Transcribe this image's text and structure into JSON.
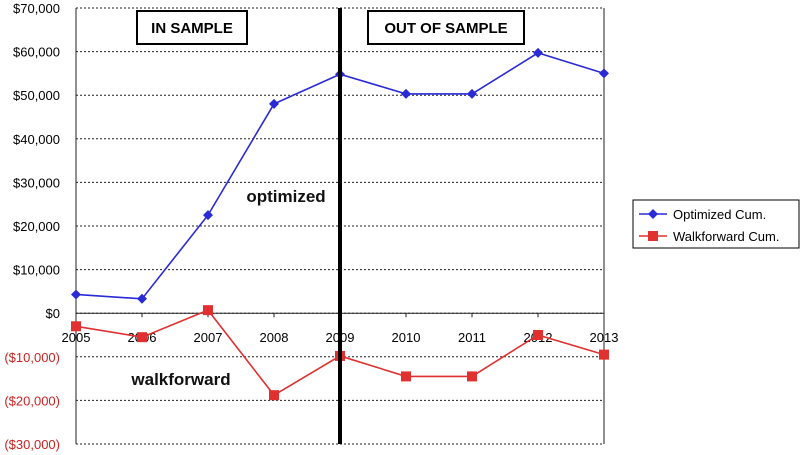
{
  "chart_data": {
    "type": "line",
    "x": [
      "2005",
      "2006",
      "2007",
      "2008",
      "2009",
      "2010",
      "2011",
      "2012",
      "2013"
    ],
    "series": [
      {
        "name": "Optimized Cum.",
        "color": "#2a2ad6",
        "marker": "diamond",
        "values": [
          4300,
          3300,
          22500,
          48000,
          54800,
          50300,
          50300,
          59700,
          55000
        ]
      },
      {
        "name": "Walkforward Cum.",
        "color": "#e03030",
        "marker": "square",
        "values": [
          -3000,
          -5500,
          700,
          -18800,
          -9800,
          -14500,
          -14500,
          -5000,
          -9500
        ]
      }
    ],
    "ylim": [
      -30000,
      70000
    ],
    "yticks": [
      {
        "value": 70000,
        "label": "$70,000"
      },
      {
        "value": 60000,
        "label": "$60,000"
      },
      {
        "value": 50000,
        "label": "$50,000"
      },
      {
        "value": 40000,
        "label": "$40,000"
      },
      {
        "value": 30000,
        "label": "$30,000"
      },
      {
        "value": 20000,
        "label": "$20,000"
      },
      {
        "value": 10000,
        "label": "$10,000"
      },
      {
        "value": 0,
        "label": "$0"
      },
      {
        "value": -10000,
        "label": "($10,000)"
      },
      {
        "value": -20000,
        "label": "($20,000)"
      },
      {
        "value": -30000,
        "label": "($30,000)"
      }
    ],
    "negative_tick_color": "#cc2222",
    "grid": "horizontal dashed",
    "divider_at": "2009",
    "regions": {
      "left": "IN SAMPLE",
      "right": "OUT OF SAMPLE"
    },
    "annotations": {
      "upper": "optimized",
      "lower": "walkforward"
    },
    "legend_position": "right"
  }
}
